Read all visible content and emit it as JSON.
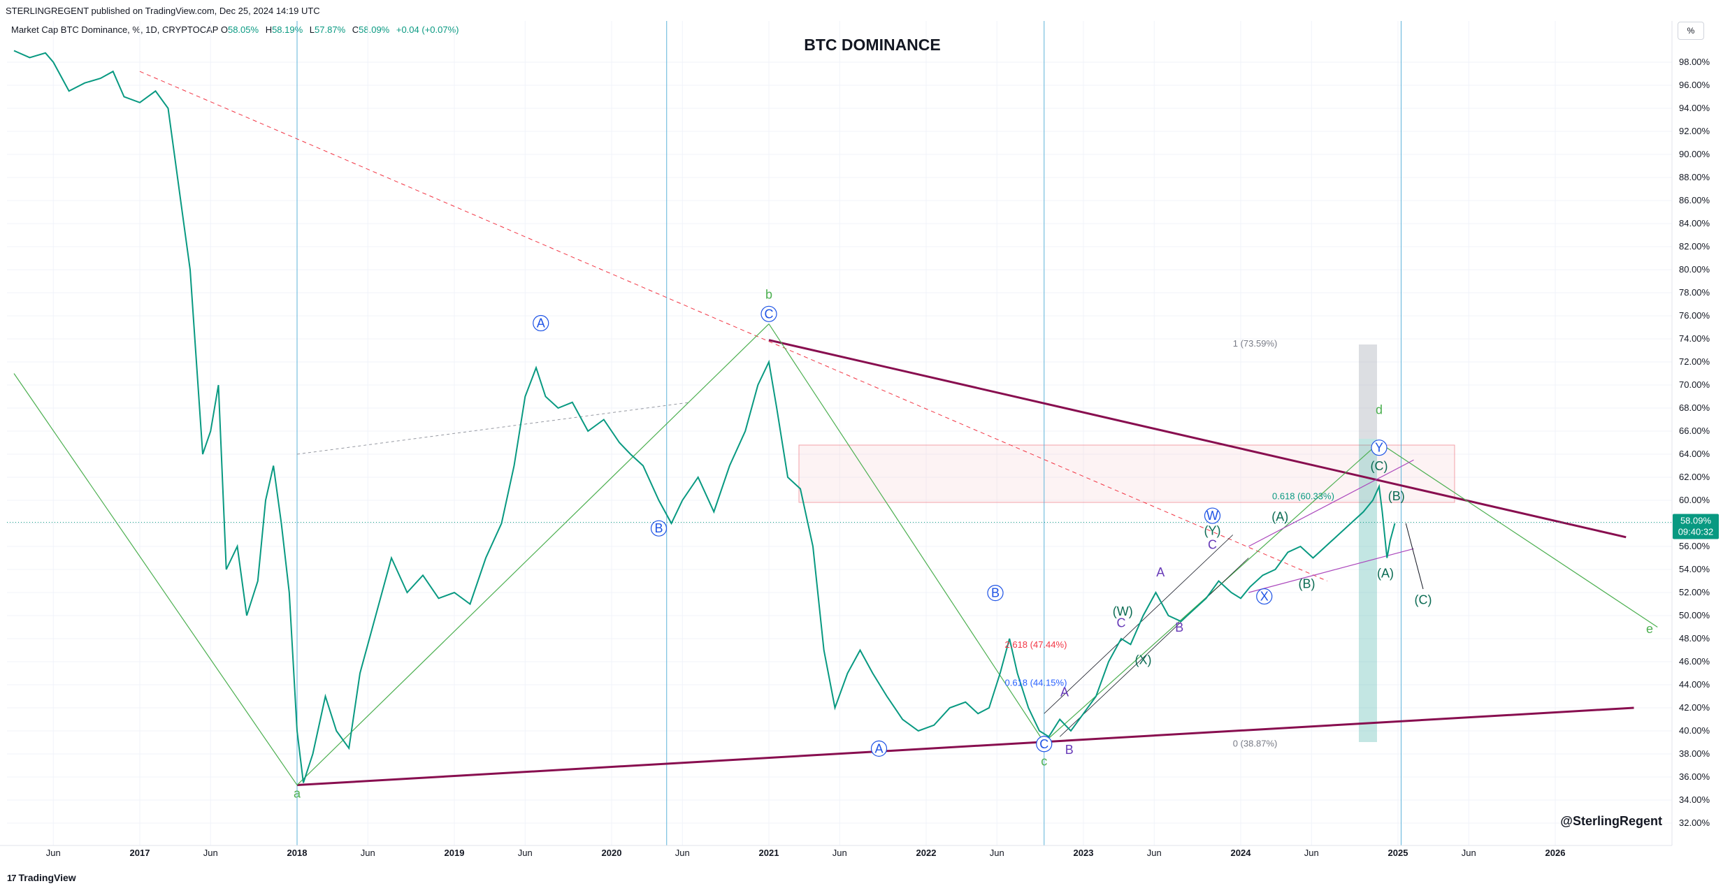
{
  "header": {
    "published": "STERLINGREGENT published on TradingView.com, Dec 25, 2024 14:19 UTC",
    "symbol_title": "Market Cap BTC Dominance, %, 1D, CRYPTOCAP",
    "ohlc": [
      {
        "label": "O",
        "value": "58.05%"
      },
      {
        "label": "H",
        "value": "58.19%"
      },
      {
        "label": "L",
        "value": "57.87%"
      },
      {
        "label": "C",
        "value": "58.09%"
      }
    ],
    "change": "+0.04 (+0.07%)",
    "scale_button": "%"
  },
  "footer": {
    "logo_mark": "17",
    "logo_text": "TradingView"
  },
  "colors": {
    "bull": "#089981",
    "bear": "#f23645",
    "triangle": "#880e4f",
    "wave_green": "#4caf50",
    "blue_wave": "#1e53e5",
    "purple_wave": "#673ab7",
    "dark_green_wave": "#0b6b53",
    "vline": "#5fb3d9"
  },
  "chart_data": {
    "type": "line",
    "title": "BTC DOMINANCE",
    "watermark": "@SterlingRegent",
    "xlabel": "",
    "ylabel": "%",
    "ylim": [
      31,
      100
    ],
    "xlim": [
      2016.2,
      2027.0
    ],
    "y_ticks": [
      "98.00%",
      "96.00%",
      "94.00%",
      "92.00%",
      "90.00%",
      "88.00%",
      "86.00%",
      "84.00%",
      "82.00%",
      "80.00%",
      "78.00%",
      "76.00%",
      "74.00%",
      "72.00%",
      "70.00%",
      "68.00%",
      "66.00%",
      "64.00%",
      "62.00%",
      "60.00%",
      "58.00%",
      "56.00%",
      "54.00%",
      "52.00%",
      "50.00%",
      "48.00%",
      "46.00%",
      "44.00%",
      "42.00%",
      "40.00%",
      "38.00%",
      "36.00%",
      "34.00%",
      "32.00%"
    ],
    "x_ticks": [
      {
        "t": 2016.45,
        "label": "Jun"
      },
      {
        "t": 2017.0,
        "label": "2017"
      },
      {
        "t": 2017.45,
        "label": "Jun"
      },
      {
        "t": 2018.0,
        "label": "2018"
      },
      {
        "t": 2018.45,
        "label": "Jun"
      },
      {
        "t": 2019.0,
        "label": "2019"
      },
      {
        "t": 2019.45,
        "label": "Jun"
      },
      {
        "t": 2020.0,
        "label": "2020"
      },
      {
        "t": 2020.45,
        "label": "Jun"
      },
      {
        "t": 2021.0,
        "label": "2021"
      },
      {
        "t": 2021.45,
        "label": "Jun"
      },
      {
        "t": 2022.0,
        "label": "2022"
      },
      {
        "t": 2022.45,
        "label": "Jun"
      },
      {
        "t": 2023.0,
        "label": "2023"
      },
      {
        "t": 2023.45,
        "label": "Jun"
      },
      {
        "t": 2024.0,
        "label": "2024"
      },
      {
        "t": 2024.45,
        "label": "Jun"
      },
      {
        "t": 2025.0,
        "label": "2025"
      },
      {
        "t": 2025.45,
        "label": "Jun"
      },
      {
        "t": 2026.0,
        "label": "2026"
      }
    ],
    "series": [
      {
        "name": "BTC Dominance (close)",
        "points": [
          [
            2016.2,
            99.0
          ],
          [
            2016.3,
            98.4
          ],
          [
            2016.4,
            98.8
          ],
          [
            2016.45,
            98.0
          ],
          [
            2016.55,
            95.5
          ],
          [
            2016.65,
            96.2
          ],
          [
            2016.75,
            96.6
          ],
          [
            2016.83,
            97.2
          ],
          [
            2016.9,
            95.0
          ],
          [
            2017.0,
            94.5
          ],
          [
            2017.1,
            95.5
          ],
          [
            2017.18,
            94.0
          ],
          [
            2017.22,
            90.0
          ],
          [
            2017.27,
            85.0
          ],
          [
            2017.32,
            80.0
          ],
          [
            2017.36,
            72.0
          ],
          [
            2017.4,
            64.0
          ],
          [
            2017.45,
            66.0
          ],
          [
            2017.5,
            70.0
          ],
          [
            2017.55,
            54.0
          ],
          [
            2017.62,
            56.0
          ],
          [
            2017.68,
            50.0
          ],
          [
            2017.75,
            53.0
          ],
          [
            2017.8,
            60.0
          ],
          [
            2017.85,
            63.0
          ],
          [
            2017.9,
            58.0
          ],
          [
            2017.95,
            52.0
          ],
          [
            2018.0,
            40.0
          ],
          [
            2018.04,
            35.5
          ],
          [
            2018.1,
            38.0
          ],
          [
            2018.18,
            43.0
          ],
          [
            2018.25,
            40.0
          ],
          [
            2018.33,
            38.5
          ],
          [
            2018.4,
            45.0
          ],
          [
            2018.5,
            50.0
          ],
          [
            2018.6,
            55.0
          ],
          [
            2018.7,
            52.0
          ],
          [
            2018.8,
            53.5
          ],
          [
            2018.9,
            51.5
          ],
          [
            2019.0,
            52.0
          ],
          [
            2019.1,
            51.0
          ],
          [
            2019.2,
            55.0
          ],
          [
            2019.3,
            58.0
          ],
          [
            2019.38,
            63.0
          ],
          [
            2019.45,
            69.0
          ],
          [
            2019.52,
            71.5
          ],
          [
            2019.58,
            69.0
          ],
          [
            2019.66,
            68.0
          ],
          [
            2019.75,
            68.5
          ],
          [
            2019.85,
            66.0
          ],
          [
            2019.95,
            67.0
          ],
          [
            2020.05,
            65.0
          ],
          [
            2020.12,
            64.0
          ],
          [
            2020.2,
            63.0
          ],
          [
            2020.3,
            60.0
          ],
          [
            2020.38,
            58.0
          ],
          [
            2020.45,
            60.0
          ],
          [
            2020.55,
            62.0
          ],
          [
            2020.65,
            59.0
          ],
          [
            2020.75,
            63.0
          ],
          [
            2020.85,
            66.0
          ],
          [
            2020.93,
            70.0
          ],
          [
            2021.0,
            72.0
          ],
          [
            2021.05,
            68.0
          ],
          [
            2021.12,
            62.0
          ],
          [
            2021.2,
            61.0
          ],
          [
            2021.28,
            56.0
          ],
          [
            2021.35,
            47.0
          ],
          [
            2021.42,
            42.0
          ],
          [
            2021.5,
            45.0
          ],
          [
            2021.58,
            47.0
          ],
          [
            2021.66,
            45.0
          ],
          [
            2021.75,
            43.0
          ],
          [
            2021.85,
            41.0
          ],
          [
            2021.95,
            40.0
          ],
          [
            2022.05,
            40.5
          ],
          [
            2022.15,
            42.0
          ],
          [
            2022.25,
            42.5
          ],
          [
            2022.33,
            41.5
          ],
          [
            2022.4,
            42.0
          ],
          [
            2022.47,
            45.0
          ],
          [
            2022.53,
            48.0
          ],
          [
            2022.58,
            45.0
          ],
          [
            2022.65,
            42.0
          ],
          [
            2022.72,
            40.0
          ],
          [
            2022.78,
            39.5
          ],
          [
            2022.85,
            41.0
          ],
          [
            2022.92,
            40.0
          ],
          [
            2023.0,
            41.5
          ],
          [
            2023.08,
            43.0
          ],
          [
            2023.16,
            46.0
          ],
          [
            2023.24,
            48.0
          ],
          [
            2023.3,
            47.5
          ],
          [
            2023.38,
            50.0
          ],
          [
            2023.46,
            52.0
          ],
          [
            2023.54,
            50.0
          ],
          [
            2023.62,
            49.5
          ],
          [
            2023.7,
            50.5
          ],
          [
            2023.78,
            51.5
          ],
          [
            2023.86,
            53.0
          ],
          [
            2023.94,
            52.0
          ],
          [
            2024.0,
            51.5
          ],
          [
            2024.06,
            52.5
          ],
          [
            2024.14,
            53.5
          ],
          [
            2024.22,
            54.0
          ],
          [
            2024.3,
            55.5
          ],
          [
            2024.38,
            56.0
          ],
          [
            2024.46,
            55.0
          ],
          [
            2024.54,
            56.0
          ],
          [
            2024.62,
            57.0
          ],
          [
            2024.7,
            58.0
          ],
          [
            2024.78,
            59.0
          ],
          [
            2024.84,
            60.0
          ],
          [
            2024.88,
            61.2
          ],
          [
            2024.9,
            59.0
          ],
          [
            2024.93,
            55.0
          ],
          [
            2024.95,
            56.5
          ],
          [
            2024.98,
            58.0
          ]
        ]
      }
    ],
    "annotations": {
      "fib_labels": [
        {
          "t": 2023.95,
          "y": 73.59,
          "text": "1 (73.59%)"
        },
        {
          "t": 2023.95,
          "y": 38.87,
          "text": "0 (38.87%)"
        },
        {
          "t": 2024.2,
          "y": 60.33,
          "text": "0.618 (60.33%)"
        },
        {
          "t": 2022.5,
          "y": 47.44,
          "text": "2.618 (47.44%)"
        },
        {
          "t": 2022.5,
          "y": 44.15,
          "text": "0.618 (44.15%)"
        }
      ],
      "waves": [
        {
          "t": 2018.0,
          "y": 34.2,
          "text": "a",
          "style": "green"
        },
        {
          "t": 2021.0,
          "y": 77.5,
          "text": "b",
          "style": "green"
        },
        {
          "t": 2022.75,
          "y": 37.0,
          "text": "c",
          "style": "green"
        },
        {
          "t": 2024.88,
          "y": 67.5,
          "text": "d",
          "style": "green"
        },
        {
          "t": 2026.6,
          "y": 48.5,
          "text": "e",
          "style": "green"
        },
        {
          "t": 2019.55,
          "y": 75.0,
          "text": "A",
          "style": "circle"
        },
        {
          "t": 2020.3,
          "y": 57.2,
          "text": "B",
          "style": "circle"
        },
        {
          "t": 2021.0,
          "y": 75.8,
          "text": "C",
          "style": "circle"
        },
        {
          "t": 2021.7,
          "y": 38.1,
          "text": "A",
          "style": "circle"
        },
        {
          "t": 2022.44,
          "y": 51.6,
          "text": "B",
          "style": "circle"
        },
        {
          "t": 2022.75,
          "y": 38.5,
          "text": "C",
          "style": "circle"
        },
        {
          "t": 2023.82,
          "y": 58.3,
          "text": "W",
          "style": "circle"
        },
        {
          "t": 2024.15,
          "y": 51.3,
          "text": "X",
          "style": "circle"
        },
        {
          "t": 2024.88,
          "y": 64.2,
          "text": "Y",
          "style": "circle"
        },
        {
          "t": 2022.88,
          "y": 43.0,
          "text": "A",
          "style": "purple"
        },
        {
          "t": 2022.91,
          "y": 38.0,
          "text": "B",
          "style": "purple"
        },
        {
          "t": 2023.24,
          "y": 49.0,
          "text": "C",
          "style": "purple"
        },
        {
          "t": 2023.49,
          "y": 53.4,
          "text": "A",
          "style": "purple"
        },
        {
          "t": 2023.61,
          "y": 48.6,
          "text": "B",
          "style": "purple"
        },
        {
          "t": 2023.82,
          "y": 55.8,
          "text": "C",
          "style": "purple"
        },
        {
          "t": 2023.25,
          "y": 50.0,
          "text": "(W)",
          "style": "dgreen"
        },
        {
          "t": 2023.38,
          "y": 45.8,
          "text": "(X)",
          "style": "dgreen"
        },
        {
          "t": 2023.82,
          "y": 57.0,
          "text": "(Y)",
          "style": "dgreen"
        },
        {
          "t": 2024.25,
          "y": 58.2,
          "text": "(A)",
          "style": "dgreen"
        },
        {
          "t": 2024.42,
          "y": 52.4,
          "text": "(B)",
          "style": "dgreen"
        },
        {
          "t": 2024.88,
          "y": 62.6,
          "text": "(C)",
          "style": "dgreen"
        },
        {
          "t": 2024.99,
          "y": 60.0,
          "text": "(B)",
          "style": "dgreen"
        },
        {
          "t": 2024.92,
          "y": 53.3,
          "text": "(A)",
          "style": "dgreen"
        },
        {
          "t": 2025.16,
          "y": 51.0,
          "text": "(C)",
          "style": "dgreen"
        }
      ]
    },
    "price_tag": {
      "y": 58.09,
      "value": "58.09%",
      "countdown": "09:40:32"
    }
  }
}
